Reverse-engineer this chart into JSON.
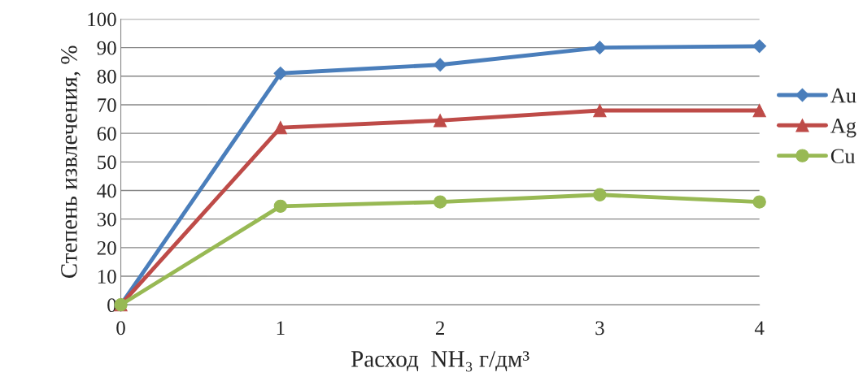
{
  "chart_data": {
    "type": "line",
    "xlabel": "Расход  NH₃ г/дм³",
    "ylabel": "Степень извлечения, %",
    "x": [
      0,
      1,
      2,
      3,
      4
    ],
    "series": [
      {
        "name": "Au",
        "color": "#4a7ebb",
        "marker": "diamond",
        "values": [
          0,
          81,
          84,
          90,
          90.5
        ]
      },
      {
        "name": "Ag",
        "color": "#be4b48",
        "marker": "triangle",
        "values": [
          0,
          62,
          64.5,
          68,
          68
        ]
      },
      {
        "name": "Cu",
        "color": "#98b954",
        "marker": "circle",
        "values": [
          0,
          34.5,
          36,
          38.5,
          36
        ]
      }
    ],
    "xlim": [
      0,
      4
    ],
    "xticks": [
      0,
      1,
      2,
      3,
      4
    ],
    "ylim": [
      0,
      100
    ],
    "yticks": [
      0,
      10,
      20,
      30,
      40,
      50,
      60,
      70,
      80,
      90,
      100
    ],
    "grid": "y",
    "legend": "right",
    "line_style": "solid"
  }
}
